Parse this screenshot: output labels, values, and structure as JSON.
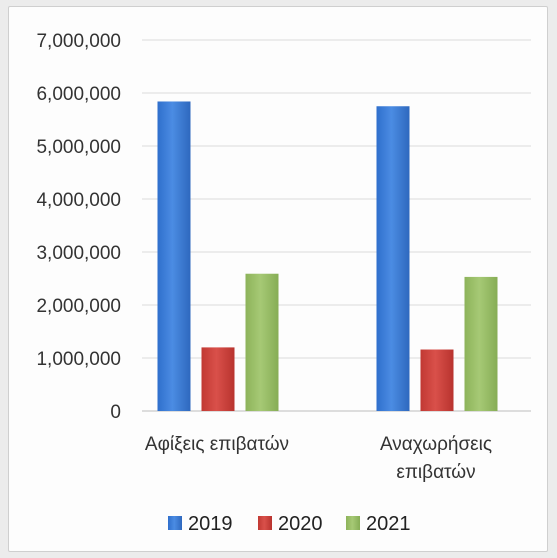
{
  "chart_data": {
    "type": "bar",
    "categories": [
      [
        "Αφίξεις επιβατών"
      ],
      [
        "Αναχωρήσεις",
        "επιβατών"
      ]
    ],
    "series": [
      {
        "name": "2019",
        "color": "#3e7fd8",
        "values": [
          5840000,
          5750000
        ]
      },
      {
        "name": "2020",
        "color": "#d0453f",
        "values": [
          1200000,
          1160000
        ]
      },
      {
        "name": "2021",
        "color": "#9cc06a",
        "values": [
          2590000,
          2530000
        ]
      }
    ],
    "ylim": [
      0,
      7000000
    ],
    "yticks": [
      0,
      1000000,
      2000000,
      3000000,
      4000000,
      5000000,
      6000000,
      7000000
    ],
    "ytick_labels": [
      "0",
      "1,000,000",
      "2,000,000",
      "3,000,000",
      "4,000,000",
      "5,000,000",
      "6,000,000",
      "7,000,000"
    ],
    "grid": true,
    "legend": "bottom"
  }
}
